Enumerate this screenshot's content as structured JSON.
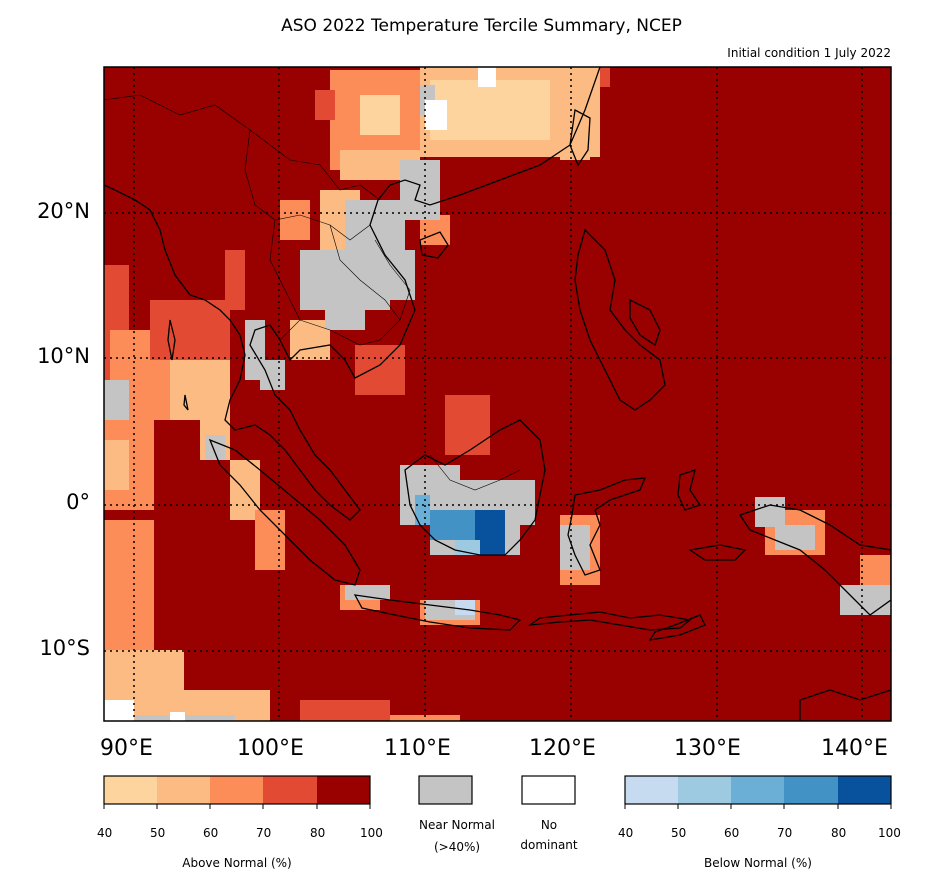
{
  "title": "ASO 2022 Temperature Tercile Summary, NCEP",
  "subtitle": "Initial condition 1 July 2022",
  "axes": {
    "lat_labels": [
      "20°N",
      "10°N",
      "0°",
      "10°S"
    ],
    "lon_labels": [
      "90°E",
      "100°E",
      "110°E",
      "120°E",
      "130°E",
      "140°E"
    ]
  },
  "colors": {
    "above": [
      "#fdd49e",
      "#fdbb84",
      "#fc8d59",
      "#e34a33",
      "#990000"
    ],
    "near": "#c4c4c4",
    "none": "#ffffff",
    "below": [
      "#c6dbef",
      "#9ecae1",
      "#6baed6",
      "#4292c6",
      "#08519c"
    ]
  },
  "legend": {
    "above": {
      "caption": "Above Normal (%)",
      "ticks": [
        "40",
        "50",
        "60",
        "70",
        "80",
        "100"
      ]
    },
    "near": {
      "caption_line1": "Near Normal",
      "caption_line2": "(>40%)"
    },
    "none": {
      "caption_line1": "No",
      "caption_line2": "dominant"
    },
    "below": {
      "caption": "Below Normal (%)",
      "ticks": [
        "40",
        "50",
        "60",
        "70",
        "80",
        "100"
      ]
    }
  }
}
